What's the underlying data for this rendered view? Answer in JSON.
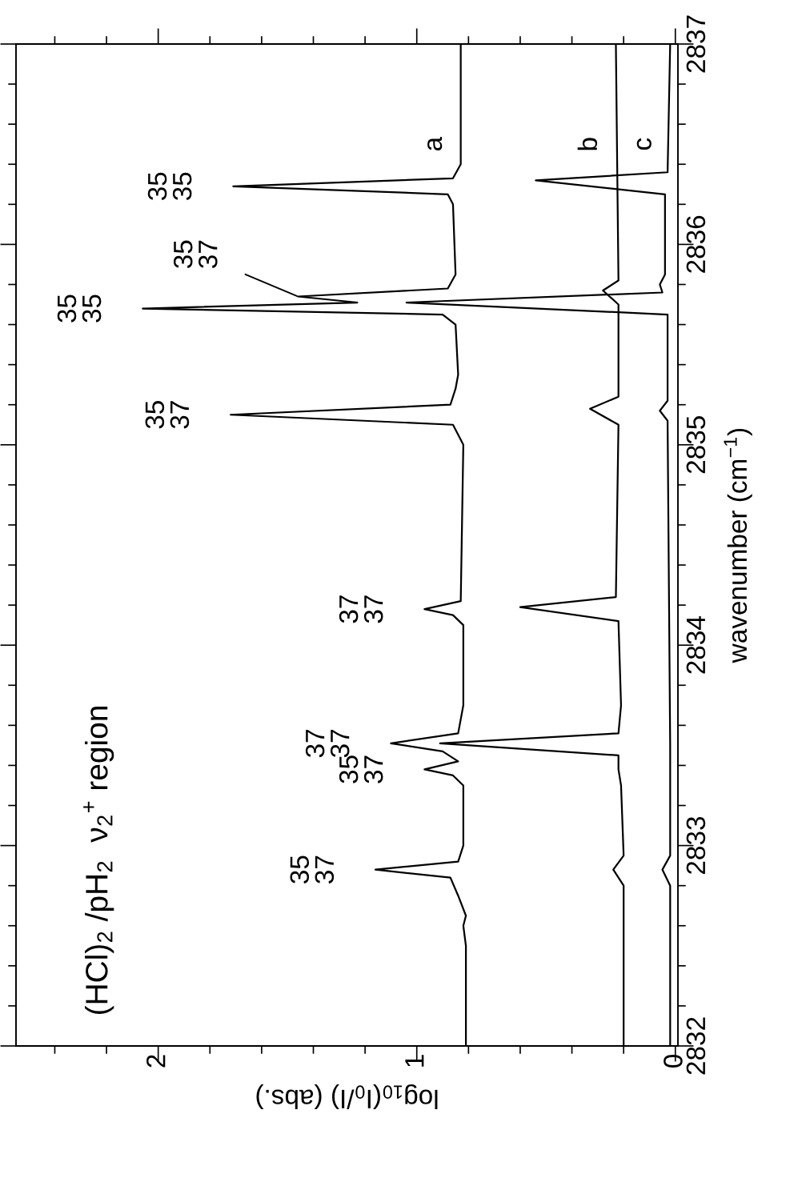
{
  "chart_data": {
    "type": "line",
    "title": "(HCl)$_{2}$ /pH$_{2}$  ν$_{2}$$^{+}$ region",
    "ylabel": "wavenumber (cm$^{−1}$)",
    "xlabel": "log$_{10}$(I$_{0}$/I) (abs.)",
    "ylim": [
      2832,
      2837
    ],
    "yticks": [
      2832,
      {
        "value": 2832.2,
        "label": null
      },
      {
        "value": 2832.4,
        "label": null
      },
      {
        "value": 2832.6,
        "label": null
      },
      {
        "value": 2832.8,
        "label": null
      },
      2833,
      {
        "value": 2833.2,
        "label": null
      },
      {
        "value": 2833.4,
        "label": null
      },
      {
        "value": 2833.6,
        "label": null
      },
      {
        "value": 2833.8,
        "label": null
      },
      2834,
      {
        "value": 2834.2,
        "label": null
      },
      {
        "value": 2834.4,
        "label": null
      },
      {
        "value": 2834.6,
        "label": null
      },
      {
        "value": 2834.8,
        "label": null
      },
      2835,
      {
        "value": 2835.2,
        "label": null
      },
      {
        "value": 2835.4,
        "label": null
      },
      {
        "value": 2835.6,
        "label": null
      },
      {
        "value": 2835.8,
        "label": null
      },
      2836,
      {
        "value": 2836.2,
        "label": null
      },
      {
        "value": 2836.4,
        "label": null
      },
      {
        "value": 2836.6,
        "label": null
      },
      {
        "value": 2836.8,
        "label": null
      },
      2837
    ],
    "xlim": [
      2.55,
      -0.01
    ],
    "xticks": [
      0,
      {
        "value": 0.2,
        "label": null
      },
      {
        "value": 0.4,
        "label": null
      },
      {
        "value": 0.6,
        "label": null
      },
      {
        "value": 0.8,
        "label": null
      },
      1,
      {
        "value": 1.2,
        "label": null
      },
      {
        "value": 1.4,
        "label": null
      },
      {
        "value": 1.6,
        "label": null
      },
      {
        "value": 1.8,
        "label": null
      },
      2,
      {
        "value": 2.2,
        "label": null
      },
      {
        "value": 2.4,
        "label": null
      }
    ],
    "series": [
      {
        "name": "a",
        "color": "#000000",
        "values": [
          2832.0,
          2832.5,
          2832.6,
          2832.65,
          2832.75,
          2832.84,
          2832.88,
          2832.92,
          2833.0,
          2833.3,
          2833.35,
          2833.38,
          2833.42,
          2833.47,
          2833.51,
          2833.56,
          2833.7,
          2834.1,
          2834.15,
          2834.18,
          2834.22,
          2835.0,
          2835.1,
          2835.15,
          2835.2,
          2835.28,
          2835.35,
          2835.6,
          2835.65,
          2835.68,
          2835.71,
          2835.74,
          2835.78,
          2835.85,
          2836.2,
          2836.25,
          2836.29,
          2836.33,
          2836.4,
          2837.0
        ],
        "x": [
          0.81,
          0.81,
          0.82,
          0.81,
          0.84,
          0.87,
          1.16,
          0.84,
          0.82,
          0.82,
          0.86,
          0.97,
          0.84,
          0.9,
          1.1,
          0.84,
          0.82,
          0.82,
          0.86,
          0.97,
          0.83,
          0.82,
          0.86,
          1.72,
          0.87,
          0.85,
          0.84,
          0.85,
          0.9,
          2.06,
          1.23,
          1.46,
          0.88,
          0.85,
          0.86,
          0.88,
          1.71,
          0.86,
          0.83,
          0.83
        ]
      },
      {
        "name": "b",
        "color": "#000000",
        "values": [
          2832.0,
          2832.8,
          2832.88,
          2832.95,
          2833.3,
          2833.38,
          2833.45,
          2833.51,
          2833.56,
          2833.7,
          2834.12,
          2834.19,
          2834.24,
          2835.1,
          2835.18,
          2835.24,
          2835.7,
          2835.77,
          2835.82,
          2837.0
        ],
        "x": [
          0.2,
          0.2,
          0.24,
          0.2,
          0.21,
          0.22,
          0.22,
          0.91,
          0.22,
          0.21,
          0.22,
          0.6,
          0.23,
          0.22,
          0.33,
          0.22,
          0.22,
          0.28,
          0.22,
          0.23
        ]
      },
      {
        "name": "c",
        "color": "#000000",
        "values": [
          2832.0,
          2832.8,
          2832.88,
          2832.95,
          2833.5,
          2835.12,
          2835.17,
          2835.22,
          2835.65,
          2835.71,
          2835.76,
          2835.8,
          2835.85,
          2836.25,
          2836.32,
          2836.36,
          2837.0
        ],
        "x": [
          0.02,
          0.02,
          0.05,
          0.02,
          0.02,
          0.03,
          0.06,
          0.03,
          0.03,
          1.04,
          0.05,
          0.06,
          0.04,
          0.04,
          0.54,
          0.03,
          0.02
        ]
      }
    ],
    "annotations": [
      {
        "text": "35\n37",
        "y": 2832.88,
        "x": 1.16
      },
      {
        "text": "35\n37",
        "y": 2833.38,
        "x": 0.97
      },
      {
        "text": "37\n37",
        "y": 2833.51,
        "x": 1.1
      },
      {
        "text": "37\n37",
        "y": 2834.18,
        "x": 0.97
      },
      {
        "text": "35\n37",
        "y": 2835.15,
        "x": 1.72
      },
      {
        "text": "35\n35",
        "y": 2835.68,
        "x": 2.06
      },
      {
        "text": "35\n37",
        "y": 2835.74,
        "x": 1.46
      },
      {
        "text": "35\n35",
        "y": 2836.29,
        "x": 1.71
      }
    ]
  }
}
